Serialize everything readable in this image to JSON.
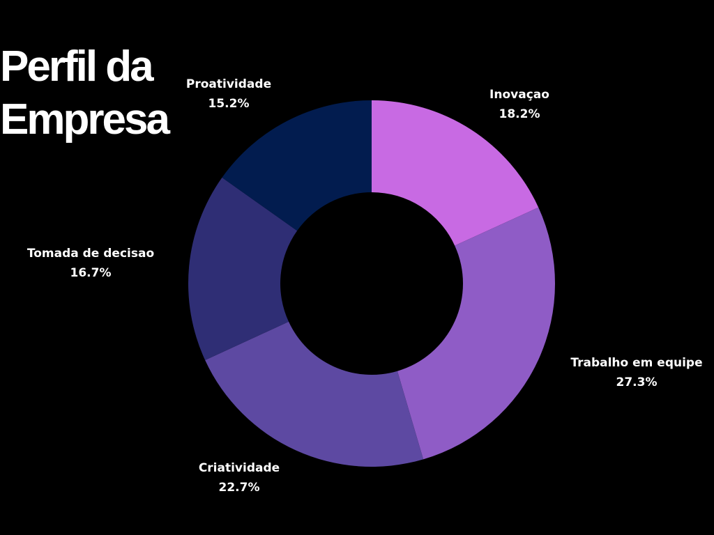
{
  "title": {
    "line1": "Perfil da",
    "line2": "Empresa"
  },
  "chart_data": {
    "type": "pie",
    "variant": "donut",
    "title": "Perfil da Empresa",
    "start_angle_deg": 0,
    "direction": "clockwise",
    "slices": [
      {
        "label": "Inovaçao",
        "value": 18.2,
        "value_label": "18.2%",
        "color": "#c86ae3"
      },
      {
        "label": "Trabalho em equipe",
        "value": 27.3,
        "value_label": "27.3%",
        "color": "#8f5cc6"
      },
      {
        "label": "Criatividade",
        "value": 22.7,
        "value_label": "22.7%",
        "color": "#5d49a2"
      },
      {
        "label": "Tomada de decisao",
        "value": 16.7,
        "value_label": "16.7%",
        "color": "#2f2e75"
      },
      {
        "label": "Proatividade",
        "value": 15.2,
        "value_label": "15.2%",
        "color": "#021c4f"
      }
    ],
    "legend": "none"
  }
}
